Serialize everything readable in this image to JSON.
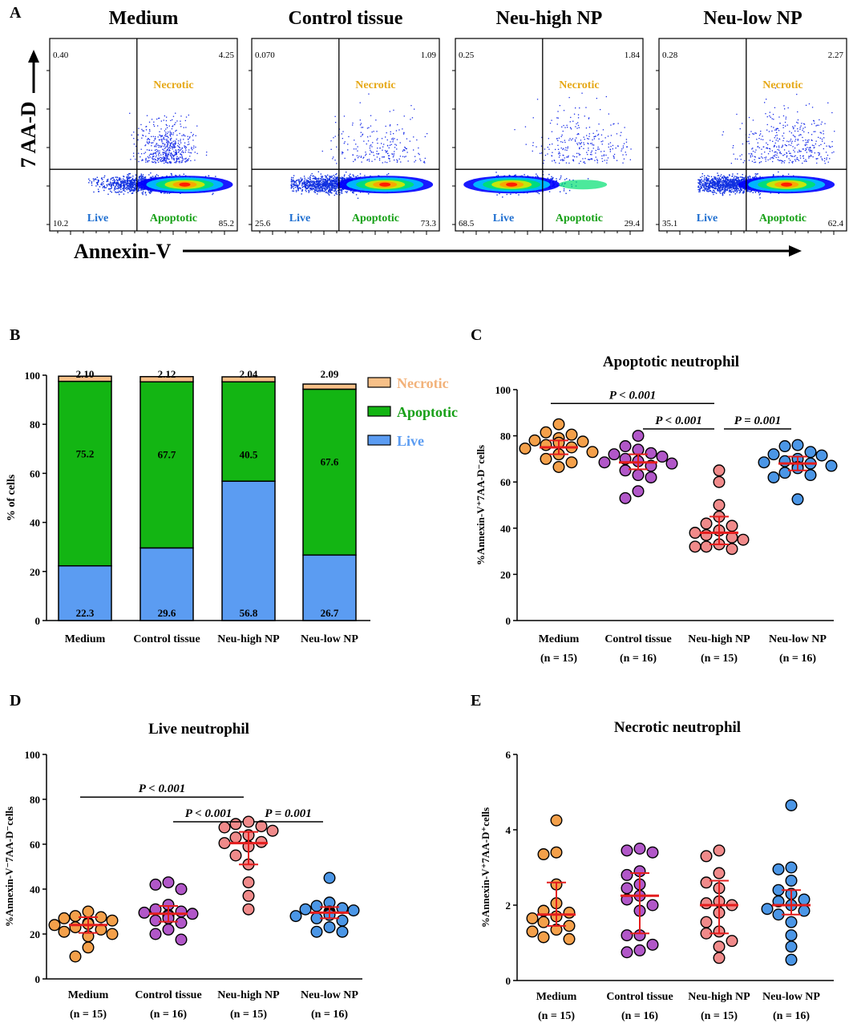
{
  "panel_a": {
    "letter": "A",
    "ylabel": "7 AA-D",
    "xlabel": "Annexin-V",
    "quad_labels": {
      "necrotic": "Necrotic",
      "live": "Live",
      "apoptotic": "Apoptotic"
    },
    "colors": {
      "live": "#1f6fd0",
      "apoptotic": "#16a016",
      "necrotic": "#e6a817"
    },
    "plots": [
      {
        "title": "Medium",
        "ul": "0.40",
        "ur": "4.25",
        "ll": "10.2",
        "lr": "85.2"
      },
      {
        "title": "Control tissue",
        "ul": "0.070",
        "ur": "1.09",
        "ll": "25.6",
        "lr": "73.3"
      },
      {
        "title": "Neu-high NP",
        "ul": "0.25",
        "ur": "1.84",
        "ll": "68.5",
        "lr": "29.4"
      },
      {
        "title": "Neu-low NP",
        "ul": "0.28",
        "ur": "2.27",
        "ll": "35.1",
        "lr": "62.4"
      }
    ]
  },
  "chart_data": [
    {
      "panel": "B",
      "type": "bar",
      "stacked": true,
      "categories": [
        "Medium",
        "Control tissue",
        "Neu-high NP",
        "Neu-low NP"
      ],
      "series": [
        {
          "name": "Live",
          "values": [
            22.3,
            29.6,
            56.8,
            26.7
          ],
          "color": "#5b9cf2"
        },
        {
          "name": "Apoptotic",
          "values": [
            75.2,
            67.7,
            40.5,
            67.6
          ],
          "color": "#13b513"
        },
        {
          "name": "Necrotic",
          "values": [
            2.1,
            2.12,
            2.04,
            2.09
          ],
          "color": "#f7c088"
        }
      ],
      "segment_labels": {
        "live": [
          "22.3",
          "29.6",
          "56.8",
          "26.7"
        ],
        "apoptotic": [
          "75.2",
          "67.7",
          "40.5",
          "67.6"
        ],
        "necrotic": [
          "2.10",
          "2.12",
          "2.04",
          "2.09"
        ]
      },
      "legend": [
        {
          "label": "Necrotic",
          "color": "#f7c088",
          "text_color": "#f2b27a"
        },
        {
          "label": "Apoptotic",
          "color": "#13b513",
          "text_color": "#18a018"
        },
        {
          "label": "Live",
          "color": "#5b9cf2",
          "text_color": "#5b9cf2"
        }
      ],
      "ylabel": "% of cells",
      "ylim": [
        0,
        100
      ],
      "yticks": [
        0,
        20,
        40,
        60,
        80,
        100
      ]
    },
    {
      "panel": "C",
      "type": "scatter",
      "title": "Apoptotic neutrophil",
      "ylabel": "%Annexin-V⁺7AA-D⁻cells",
      "ylim": [
        0,
        100
      ],
      "yticks": [
        0,
        20,
        40,
        60,
        80,
        100
      ],
      "groups": [
        {
          "name": "Medium",
          "n": "(n = 15)",
          "color": "#f4a04a",
          "mean": 75,
          "err": [
            72,
            78
          ],
          "points": [
            85,
            81.5,
            80.5,
            79,
            78,
            77.5,
            77,
            76,
            75,
            74.5,
            73,
            72,
            70,
            68.5,
            66.5
          ]
        },
        {
          "name": "Control tissue",
          "n": "(n = 16)",
          "color": "#b157c8",
          "mean": 68.5,
          "err": [
            65.5,
            72
          ],
          "points": [
            80,
            75.5,
            74,
            72.5,
            72,
            71,
            70,
            69,
            68.5,
            68,
            67,
            65,
            63,
            62,
            56,
            53
          ]
        },
        {
          "name": "Neu-high NP",
          "n": "(n = 15)",
          "color": "#f08a8a",
          "mean": 38,
          "err": [
            33,
            45
          ],
          "points": [
            65,
            60,
            50,
            45,
            42,
            41,
            39,
            38,
            37,
            36,
            35,
            33,
            32,
            32,
            31
          ]
        },
        {
          "name": "Neu-low NP",
          "n": "(n = 16)",
          "color": "#4b96e6",
          "mean": 68,
          "err": [
            65,
            71
          ],
          "points": [
            76,
            75.5,
            73,
            72,
            71.5,
            70,
            69,
            68.5,
            68,
            67,
            66.5,
            66,
            64,
            63,
            62,
            52.5
          ]
        }
      ],
      "comparisons": [
        {
          "label": "P < 0.001",
          "from": 0,
          "to": 2,
          "y": 94
        },
        {
          "label": "P < 0.001",
          "from": 1,
          "to": 2,
          "y": 83
        },
        {
          "label": "P = 0.001",
          "from": 2,
          "to": 3,
          "y": 83
        }
      ]
    },
    {
      "panel": "D",
      "type": "scatter",
      "title": "Live neutrophil",
      "ylabel": "%Annexin-V⁻7AA-D⁻cells",
      "ylim": [
        0,
        100
      ],
      "yticks": [
        0,
        20,
        40,
        60,
        80,
        100
      ],
      "groups": [
        {
          "name": "Medium",
          "n": "(n = 15)",
          "color": "#f4a04a",
          "mean": 24,
          "err": [
            20.5,
            27.5
          ],
          "points": [
            30,
            28,
            27.5,
            27,
            26,
            25,
            24.5,
            24,
            23,
            22,
            21,
            20,
            19,
            14,
            10
          ]
        },
        {
          "name": "Control tissue",
          "n": "(n = 16)",
          "color": "#b157c8",
          "mean": 29,
          "err": [
            25.5,
            32.5
          ],
          "points": [
            43,
            42,
            40,
            33,
            31,
            30,
            29.5,
            29,
            28.5,
            28,
            27,
            26,
            25,
            22,
            20,
            17.5
          ]
        },
        {
          "name": "Neu-high NP",
          "n": "(n = 15)",
          "color": "#f08a8a",
          "mean": 60.5,
          "err": [
            51,
            65.5
          ],
          "points": [
            70,
            69,
            68,
            67.5,
            66,
            64,
            63,
            61,
            60.5,
            59,
            55,
            51,
            43,
            37,
            31
          ]
        },
        {
          "name": "Neu-low NP",
          "n": "(n = 16)",
          "color": "#4b96e6",
          "mean": 29.5,
          "err": [
            27,
            32
          ],
          "points": [
            45,
            34,
            32.5,
            31.5,
            31,
            30.5,
            30,
            29.5,
            29,
            28.5,
            28,
            27,
            26,
            23,
            21,
            21
          ]
        }
      ],
      "comparisons": [
        {
          "label": "P < 0.001",
          "from": 0,
          "to": 2,
          "y": 81
        },
        {
          "label": "P < 0.001",
          "from": 1,
          "to": 2,
          "y": 70
        },
        {
          "label": "P = 0.001",
          "from": 2,
          "to": 3,
          "y": 70
        }
      ]
    },
    {
      "panel": "E",
      "type": "scatter",
      "title": "Necrotic neutrophil",
      "ylabel": "%Annexin-V⁺7AA-D⁺cells",
      "ylim": [
        0,
        6
      ],
      "yticks": [
        0,
        2,
        4,
        6
      ],
      "groups": [
        {
          "name": "Medium",
          "n": "(n = 15)",
          "color": "#f4a04a",
          "mean": 1.75,
          "err": [
            1.45,
            2.6
          ],
          "points": [
            4.25,
            3.4,
            3.35,
            2.55,
            2.05,
            1.85,
            1.8,
            1.7,
            1.65,
            1.55,
            1.45,
            1.35,
            1.3,
            1.15,
            1.1
          ]
        },
        {
          "name": "Control tissue",
          "n": "(n = 16)",
          "color": "#b157c8",
          "mean": 2.25,
          "err": [
            1.25,
            2.85
          ],
          "points": [
            3.5,
            3.45,
            3.4,
            2.9,
            2.8,
            2.55,
            2.45,
            2.25,
            2.15,
            2.0,
            1.85,
            1.2,
            1.2,
            0.95,
            0.8,
            0.75
          ]
        },
        {
          "name": "Neu-high NP",
          "n": "(n = 15)",
          "color": "#f08a8a",
          "mean": 2.0,
          "err": [
            1.25,
            2.65
          ],
          "points": [
            3.45,
            3.3,
            2.85,
            2.6,
            2.45,
            2.1,
            2.05,
            2.0,
            1.8,
            1.55,
            1.3,
            1.25,
            1.05,
            0.9,
            0.6
          ]
        },
        {
          "name": "Neu-low NP",
          "n": "(n = 16)",
          "color": "#4b96e6",
          "mean": 2.0,
          "err": [
            1.75,
            2.4
          ],
          "points": [
            4.65,
            3.0,
            2.95,
            2.65,
            2.4,
            2.3,
            2.15,
            2.1,
            2.0,
            1.9,
            1.85,
            1.75,
            1.55,
            1.2,
            0.9,
            0.55
          ]
        }
      ],
      "comparisons": []
    }
  ]
}
